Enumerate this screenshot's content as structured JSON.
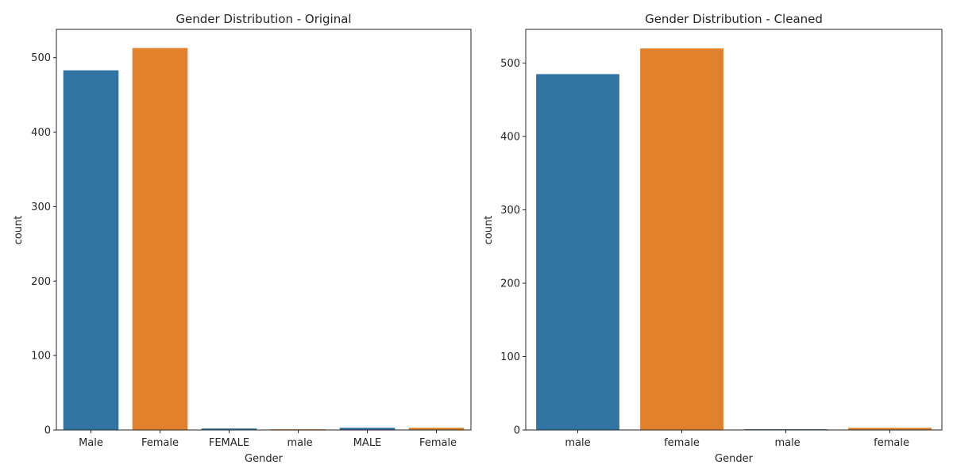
{
  "chart_data": [
    {
      "type": "bar",
      "title": "Gender Distribution - Original",
      "xlabel": "Gender",
      "ylabel": "count",
      "ylim": [
        0,
        538
      ],
      "yticks": [
        0,
        100,
        200,
        300,
        400,
        500
      ],
      "grid": false,
      "categories": [
        "Male",
        "Female",
        "FEMALE",
        " male",
        "MALE",
        " Female"
      ],
      "values": [
        483,
        513,
        2,
        1,
        3,
        3
      ],
      "colors": [
        "#3274a1",
        "#e1812c",
        "#3274a1",
        "#e1812c",
        "#3274a1",
        "#e1812c"
      ]
    },
    {
      "type": "bar",
      "title": "Gender Distribution - Cleaned",
      "xlabel": "Gender",
      "ylabel": "count",
      "ylim": [
        0,
        546
      ],
      "yticks": [
        0,
        100,
        200,
        300,
        400,
        500
      ],
      "grid": false,
      "categories": [
        "male",
        "female",
        " male",
        " female"
      ],
      "values": [
        485,
        520,
        1,
        3
      ],
      "colors": [
        "#3274a1",
        "#e1812c",
        "#3274a1",
        "#e1812c"
      ]
    }
  ]
}
